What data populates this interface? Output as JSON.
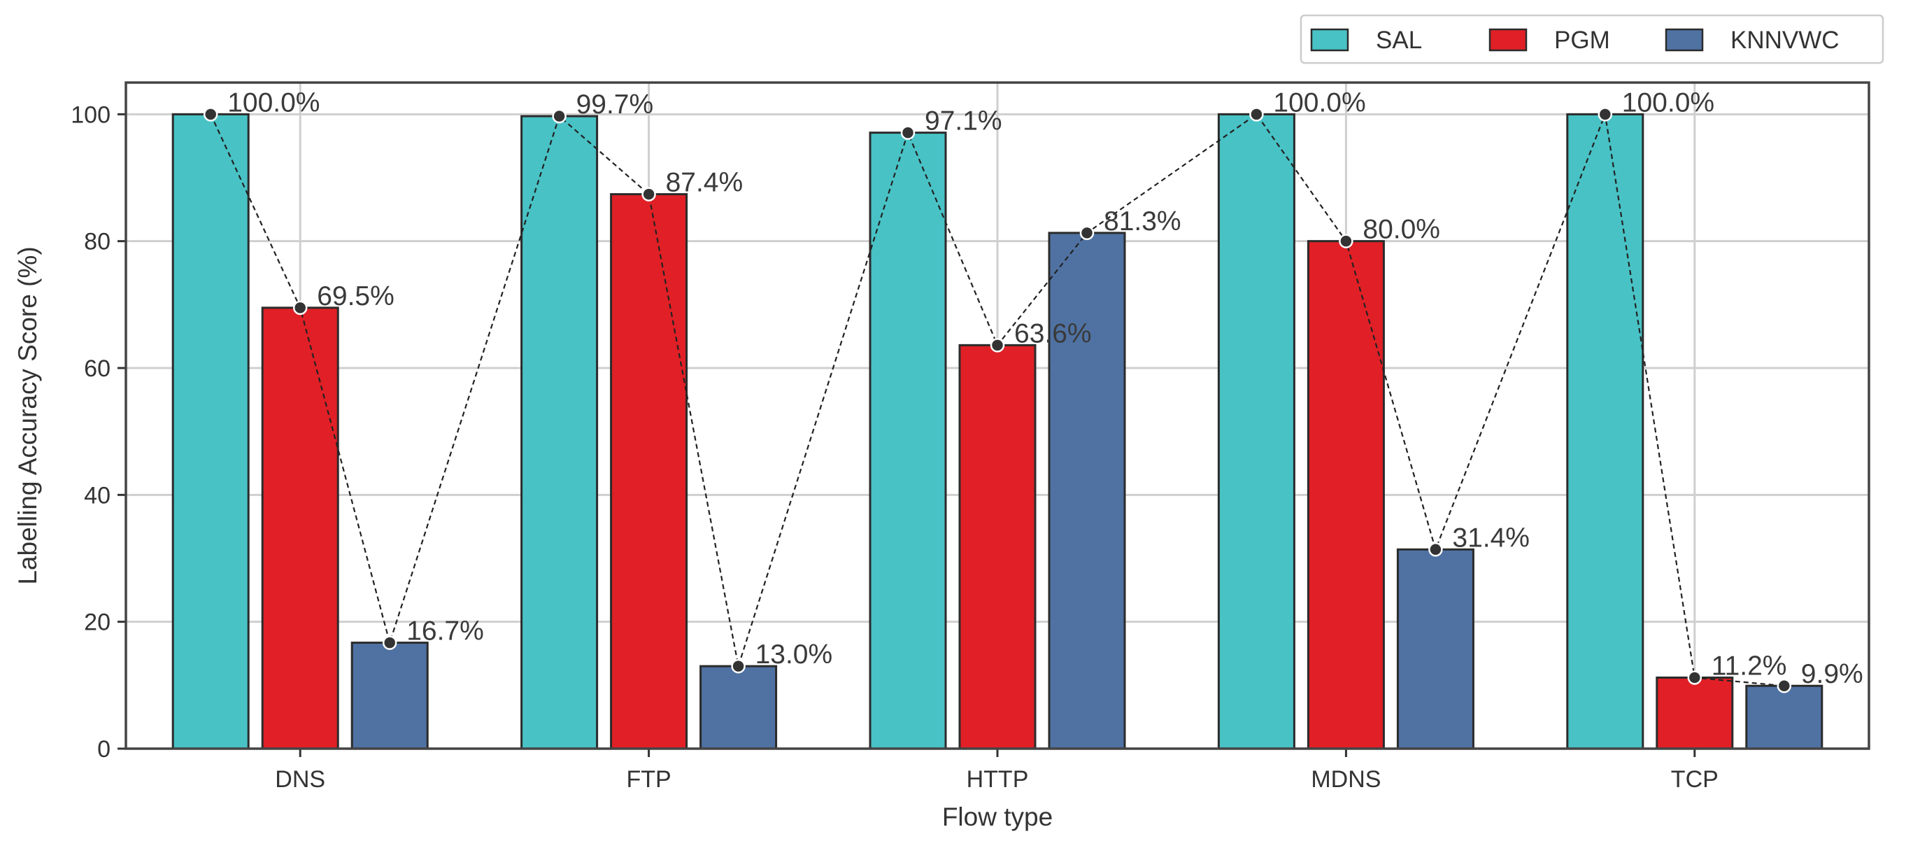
{
  "chart_data": {
    "type": "bar",
    "title": "",
    "xlabel": "Flow type",
    "ylabel": "Labelling Accuracy Score (%)",
    "categories": [
      "DNS",
      "FTP",
      "HTTP",
      "MDNS",
      "TCP"
    ],
    "series": [
      {
        "name": "SAL",
        "color": "#48C2C5",
        "values": [
          100.0,
          99.7,
          97.1,
          100.0,
          100.0
        ],
        "labels": [
          "100.0%",
          "99.7%",
          "97.1%",
          "100.0%",
          "100.0%"
        ]
      },
      {
        "name": "PGM",
        "color": "#E02026",
        "values": [
          69.5,
          87.4,
          63.6,
          80.0,
          11.2
        ],
        "labels": [
          "69.5%",
          "87.4%",
          "63.6%",
          "80.0%",
          "11.2%"
        ]
      },
      {
        "name": "KNNVWC",
        "color": "#4F72A3",
        "values": [
          16.7,
          13.0,
          81.3,
          31.4,
          9.9
        ],
        "labels": [
          "16.7%",
          "13.0%",
          "81.3%",
          "31.4%",
          "9.9%"
        ]
      }
    ],
    "ylim": [
      0,
      105
    ],
    "yticks": [
      0,
      20,
      40,
      60,
      80,
      100
    ],
    "grid": true,
    "legend_position": "top-right, above plot",
    "connector_line": {
      "style": "dashed",
      "color": "#222222"
    }
  }
}
